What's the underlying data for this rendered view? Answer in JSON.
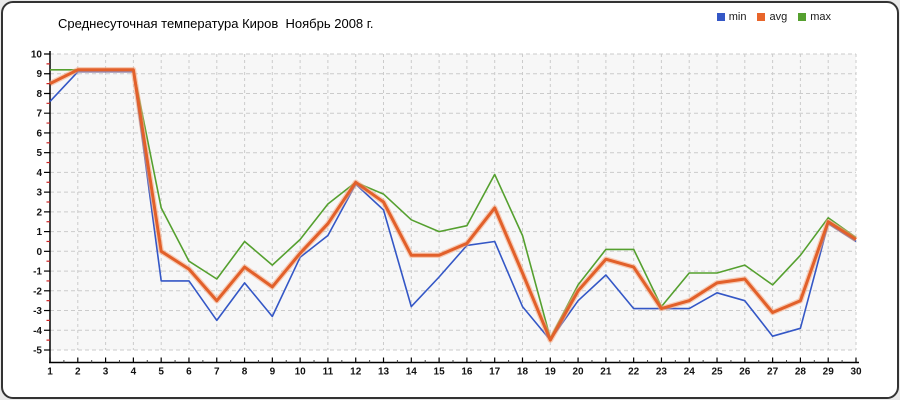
{
  "title": "Среднесуточная температура Киров  Ноябрь 2008 г.",
  "legend": {
    "items": [
      {
        "label": "min",
        "color": "#3457c6"
      },
      {
        "label": "avg",
        "color": "#e8652a"
      },
      {
        "label": "max",
        "color": "#55a02f"
      }
    ]
  },
  "axes": {
    "y_tick_labels": [
      "10",
      "9",
      "8",
      "7",
      "6",
      "5",
      "4",
      "3",
      "2",
      "1",
      "0",
      "-1",
      "-2",
      "-3",
      "-4",
      "-5"
    ],
    "x_tick_labels": [
      "1",
      "2",
      "3",
      "4",
      "5",
      "6",
      "7",
      "8",
      "9",
      "10",
      "11",
      "12",
      "13",
      "14",
      "15",
      "16",
      "17",
      "18",
      "19",
      "20",
      "21",
      "22",
      "23",
      "24",
      "25",
      "26",
      "27",
      "28",
      "29",
      "30"
    ]
  },
  "colors": {
    "grid": "#cbcbcb",
    "axis": "#000000",
    "minor_tick": "#cc2222",
    "x_minor_tick": "#444444",
    "plot_background": "#f7f7f7",
    "tick_label": "#111111",
    "avg_halo": "#f5a87f"
  },
  "chart_data": {
    "type": "line",
    "title": "Среднесуточная температура Киров  Ноябрь 2008 г.",
    "xlabel": "",
    "ylabel": "",
    "ylim": [
      -5,
      10
    ],
    "grid": true,
    "legend_position": "top-right",
    "categories": [
      1,
      2,
      3,
      4,
      5,
      6,
      7,
      8,
      9,
      10,
      11,
      12,
      13,
      14,
      15,
      16,
      17,
      18,
      19,
      20,
      21,
      22,
      23,
      24,
      25,
      26,
      27,
      28,
      29,
      30
    ],
    "series": [
      {
        "name": "min",
        "color": "#3457c6",
        "values": [
          7.6,
          9.1,
          9.1,
          9.1,
          -1.5,
          -1.5,
          -3.5,
          -1.6,
          -3.3,
          -0.3,
          0.8,
          3.4,
          2.1,
          -2.8,
          -1.3,
          0.3,
          0.5,
          -2.8,
          -4.5,
          -2.5,
          -1.2,
          -2.9,
          -2.9,
          -2.9,
          -2.1,
          -2.5,
          -4.3,
          -3.9,
          1.4,
          0.5
        ]
      },
      {
        "name": "avg",
        "color": "#e2602a",
        "values": [
          8.5,
          9.2,
          9.2,
          9.2,
          0.0,
          -0.9,
          -2.5,
          -0.8,
          -1.8,
          -0.1,
          1.4,
          3.5,
          2.5,
          -0.2,
          -0.2,
          0.4,
          2.2,
          -1.1,
          -4.5,
          -2.0,
          -0.4,
          -0.8,
          -2.9,
          -2.5,
          -1.6,
          -1.4,
          -3.1,
          -2.5,
          1.5,
          0.6
        ]
      },
      {
        "name": "max",
        "color": "#55a02f",
        "values": [
          9.2,
          9.2,
          9.2,
          9.2,
          2.2,
          -0.5,
          -1.4,
          0.5,
          -0.7,
          0.6,
          2.4,
          3.5,
          2.9,
          1.6,
          1.0,
          1.3,
          3.9,
          0.8,
          -4.4,
          -1.7,
          0.1,
          0.1,
          -2.8,
          -1.1,
          -1.1,
          -0.7,
          -1.7,
          -0.2,
          1.7,
          0.7
        ]
      }
    ]
  }
}
